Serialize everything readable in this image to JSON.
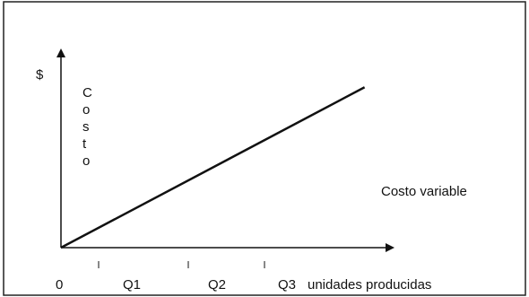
{
  "chart_data": {
    "type": "line",
    "title": "",
    "y_unit_label": "$",
    "ylabel": "Costo",
    "xlabel": "unidades producidas",
    "tick_labels": [
      "0",
      "Q1",
      "Q2",
      "Q3"
    ],
    "x": [
      0,
      4
    ],
    "series": [
      {
        "name": "Costo variable",
        "values": [
          0,
          2.6
        ]
      }
    ],
    "xlim": [
      0,
      4.3
    ],
    "ylim": [
      0,
      3.2
    ],
    "grid": false,
    "legend": "none",
    "colors": {
      "line": "#111111",
      "axes": "#111111",
      "frame": "#222222"
    }
  }
}
